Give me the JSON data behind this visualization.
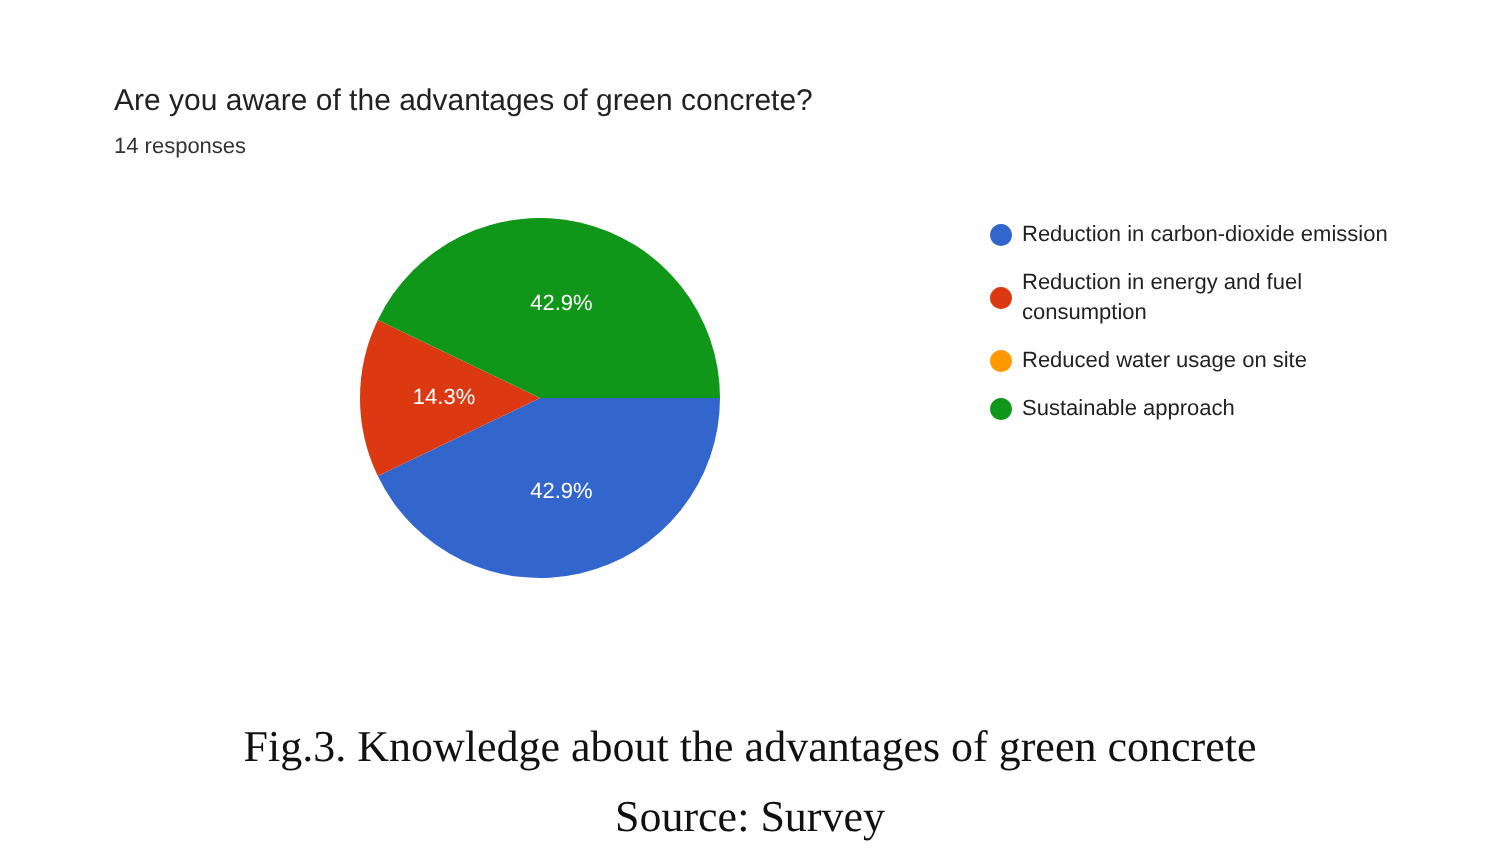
{
  "chart_data": {
    "type": "pie",
    "title": "Are you aware of the advantages of green concrete?",
    "subtitle": "14 responses",
    "categories": [
      "Reduction in carbon-dioxide emission",
      "Reduction in energy and fuel consumption",
      "Reduced water usage on site",
      "Sustainable approach"
    ],
    "values": [
      42.9,
      14.3,
      0,
      42.9
    ],
    "colors": [
      "#3366cc",
      "#dc3912",
      "#ff9900",
      "#109618"
    ],
    "value_labels": [
      "42.9%",
      "14.3%",
      null,
      "42.9%"
    ],
    "legend": "right",
    "annotations": [
      "Fig.3. Knowledge about the advantages of green concrete",
      "Source: Survey"
    ]
  }
}
